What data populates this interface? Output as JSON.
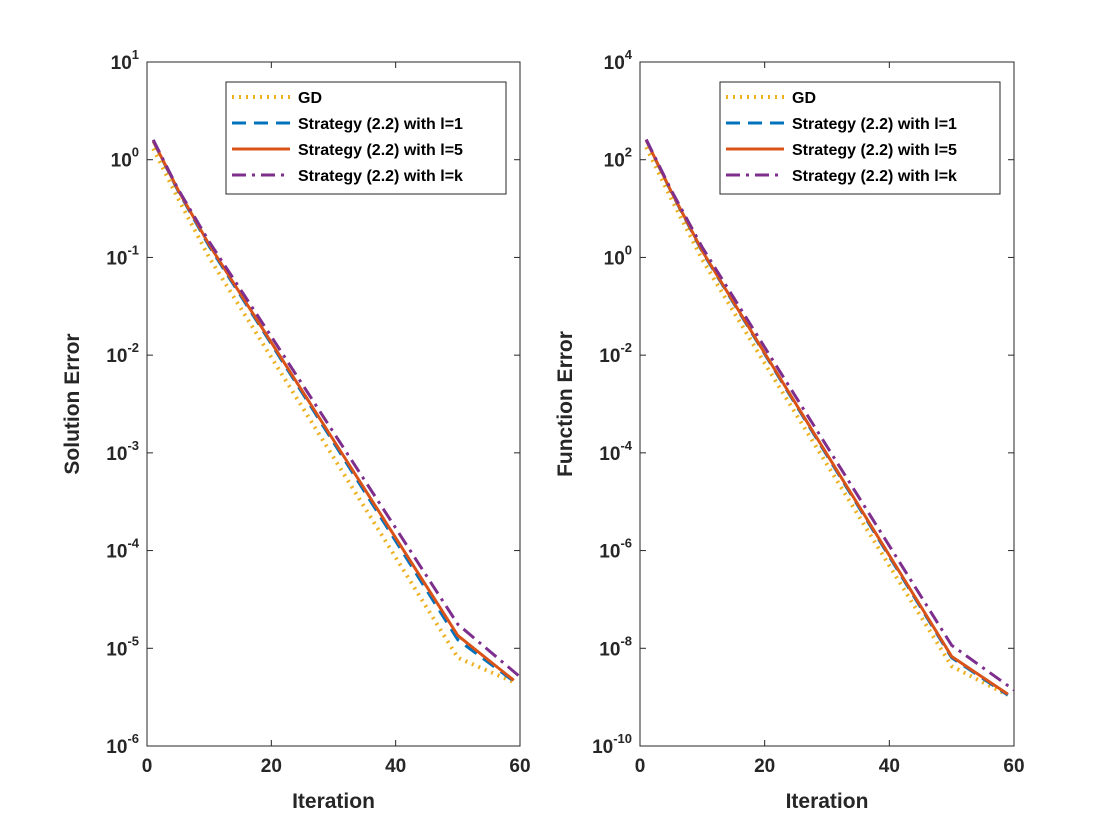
{
  "colors": {
    "GD": "#EDB120",
    "l1": "#0072BD",
    "l5": "#D95319",
    "lk": "#7E2F8E",
    "axis": "#262626"
  },
  "chart_data": [
    {
      "type": "line",
      "xlabel": "Iteration",
      "ylabel": "Solution Error",
      "yscale": "log",
      "xlim": [
        0,
        60
      ],
      "ylim": [
        1e-06,
        10
      ],
      "xticks": [
        0,
        20,
        40,
        60
      ],
      "xtick_labels": [
        "0",
        "20",
        "40",
        "60"
      ],
      "yticks": [
        1e-06,
        1e-05,
        0.0001,
        0.001,
        0.01,
        0.1,
        1,
        10
      ],
      "ytick_labels": [
        {
          "base": "10",
          "exp": "-6"
        },
        {
          "base": "10",
          "exp": "-5"
        },
        {
          "base": "10",
          "exp": "-4"
        },
        {
          "base": "10",
          "exp": "-3"
        },
        {
          "base": "10",
          "exp": "-2"
        },
        {
          "base": "10",
          "exp": "-1"
        },
        {
          "base": "10",
          "exp": "0"
        },
        {
          "base": "10",
          "exp": "1"
        }
      ],
      "grid": false,
      "legend_position": "top-right",
      "series": [
        {
          "name": "GD",
          "style": "dotted",
          "x": [
            1,
            5,
            10,
            20,
            30,
            40,
            50,
            59
          ],
          "y": [
            1.3,
            0.4,
            0.1,
            0.0095,
            0.0009,
            8.5e-05,
            8e-06,
            4.5e-06
          ]
        },
        {
          "name": "Strategy (2.2) with l=1",
          "style": "dashed",
          "x": [
            1,
            5,
            10,
            20,
            30,
            40,
            50,
            59
          ],
          "y": [
            1.55,
            0.48,
            0.13,
            0.013,
            0.00128,
            0.000125,
            1.22e-05,
            4.6e-06
          ]
        },
        {
          "name": "Strategy (2.2) with l=5",
          "style": "solid",
          "x": [
            1,
            5,
            10,
            20,
            30,
            40,
            50,
            59
          ],
          "y": [
            1.55,
            0.49,
            0.135,
            0.0135,
            0.00135,
            0.000135,
            1.35e-05,
            4.7e-06
          ]
        },
        {
          "name": "Strategy (2.2) with l=k",
          "style": "dashdot",
          "x": [
            1,
            5,
            10,
            20,
            30,
            40,
            50,
            60
          ],
          "y": [
            1.6,
            0.5,
            0.145,
            0.0155,
            0.00162,
            0.00017,
            1.76e-05,
            5.1e-06
          ]
        }
      ]
    },
    {
      "type": "line",
      "xlabel": "Iteration",
      "ylabel": "Function Error",
      "yscale": "log",
      "xlim": [
        0,
        60
      ],
      "ylim": [
        1e-10,
        10000
      ],
      "xticks": [
        0,
        20,
        40,
        60
      ],
      "xtick_labels": [
        "0",
        "20",
        "40",
        "60"
      ],
      "yticks": [
        1e-10,
        1e-08,
        1e-06,
        0.0001,
        0.01,
        1,
        100,
        10000
      ],
      "ytick_labels": [
        {
          "base": "10",
          "exp": "-10"
        },
        {
          "base": "10",
          "exp": "-8"
        },
        {
          "base": "10",
          "exp": "-6"
        },
        {
          "base": "10",
          "exp": "-4"
        },
        {
          "base": "10",
          "exp": "-2"
        },
        {
          "base": "10",
          "exp": "0"
        },
        {
          "base": "10",
          "exp": "2"
        },
        {
          "base": "10",
          "exp": "4"
        }
      ],
      "grid": false,
      "legend_position": "top-right",
      "series": [
        {
          "name": "GD",
          "style": "dotted",
          "x": [
            1,
            5,
            10,
            20,
            30,
            40,
            50,
            59
          ],
          "y": [
            180,
            16,
            0.9,
            0.0068,
            5.8e-05,
            4.9e-07,
            4.3e-09,
            1.1e-09
          ]
        },
        {
          "name": "Strategy (2.2) with l=1",
          "style": "dashed",
          "x": [
            1,
            5,
            10,
            20,
            30,
            40,
            50,
            59
          ],
          "y": [
            250,
            22,
            1.3,
            0.0105,
            8.8e-05,
            7.5e-07,
            6.4e-09,
            1.1e-09
          ]
        },
        {
          "name": "Strategy (2.2) with l=5",
          "style": "solid",
          "x": [
            1,
            5,
            10,
            20,
            30,
            40,
            50,
            59
          ],
          "y": [
            250,
            22.5,
            1.35,
            0.011,
            9.35e-05,
            8e-07,
            6.8e-09,
            1.15e-09
          ]
        },
        {
          "name": "Strategy (2.2) with l=k",
          "style": "dashdot",
          "x": [
            1,
            5,
            10,
            20,
            30,
            40,
            50,
            60
          ],
          "y": [
            260,
            24,
            1.6,
            0.0145,
            0.000135,
            1.25e-06,
            1.15e-08,
            1.4e-09
          ]
        }
      ]
    }
  ]
}
